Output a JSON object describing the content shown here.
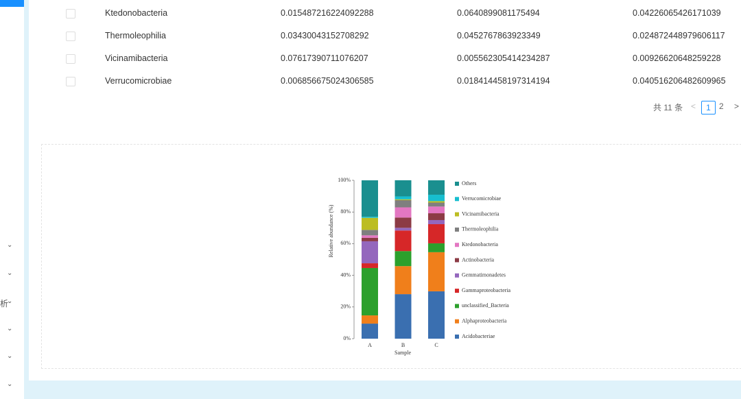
{
  "sidebar_fragment": "析",
  "table": {
    "rows": [
      [
        "Ktedonobacteria",
        "0.015487216224092288",
        "0.0640899081175494",
        "0.04226065426171039"
      ],
      [
        "Thermoleophilia",
        "0.03430043152708292",
        "0.0452767863923349",
        "0.024872448979606117"
      ],
      [
        "Vicinamibacteria",
        "0.07617390711076207",
        "0.005562305414234287",
        "0.00926620648259228"
      ],
      [
        "Verrucomicrobiae",
        "0.006856675024306585",
        "0.018414458197314194",
        "0.040516206482609965"
      ]
    ]
  },
  "pagination": {
    "total": "共 11 条",
    "pages": [
      "1",
      "2"
    ],
    "prev": "<",
    "next": ">"
  },
  "chart_data": {
    "type": "stacked_bar",
    "ylabel": "Relative abundance (%)",
    "xlabel": "Sample",
    "categories": [
      "A",
      "B",
      "C"
    ],
    "ylim": [
      0,
      100
    ],
    "yticks": [
      {
        "value": 0,
        "label": "0%"
      },
      {
        "value": 20,
        "label": "20%"
      },
      {
        "value": 40,
        "label": "40%"
      },
      {
        "value": 60,
        "label": "60%"
      },
      {
        "value": 80,
        "label": "80%"
      },
      {
        "value": 100,
        "label": "100%"
      }
    ],
    "series": [
      {
        "name": "Acidobacteriae",
        "color": "#3a6fb0",
        "values": [
          9.5,
          28.1,
          29.9
        ]
      },
      {
        "name": "Alphaproteobacteria",
        "color": "#f07f1b",
        "values": [
          5.2,
          17.7,
          24.7
        ]
      },
      {
        "name": "unclassified_Bacteria",
        "color": "#2ca02c",
        "values": [
          29.9,
          9.5,
          5.6
        ]
      },
      {
        "name": "Gammaproteobacteria",
        "color": "#d62728",
        "values": [
          3.0,
          13.0,
          12.1
        ]
      },
      {
        "name": "Gemmatimonadetes",
        "color": "#9467bd",
        "values": [
          13.9,
          1.7,
          2.6
        ]
      },
      {
        "name": "Actinobacteria",
        "color": "#8c3b45",
        "values": [
          2.2,
          6.5,
          4.3
        ]
      },
      {
        "name": "Ktedonobacteria",
        "color": "#e377c2",
        "values": [
          1.55,
          6.41,
          4.23
        ]
      },
      {
        "name": "Thermoleophilia",
        "color": "#7f7f7f",
        "values": [
          3.43,
          4.53,
          2.49
        ]
      },
      {
        "name": "Vicinamibacteria",
        "color": "#bcbd22",
        "values": [
          7.62,
          0.56,
          0.93
        ]
      },
      {
        "name": "Verrucomicrobiae",
        "color": "#17becf",
        "values": [
          0.69,
          1.84,
          4.05
        ]
      },
      {
        "name": "Others",
        "color": "#1a8f8f",
        "values": [
          23.0,
          10.2,
          9.1
        ]
      }
    ]
  }
}
